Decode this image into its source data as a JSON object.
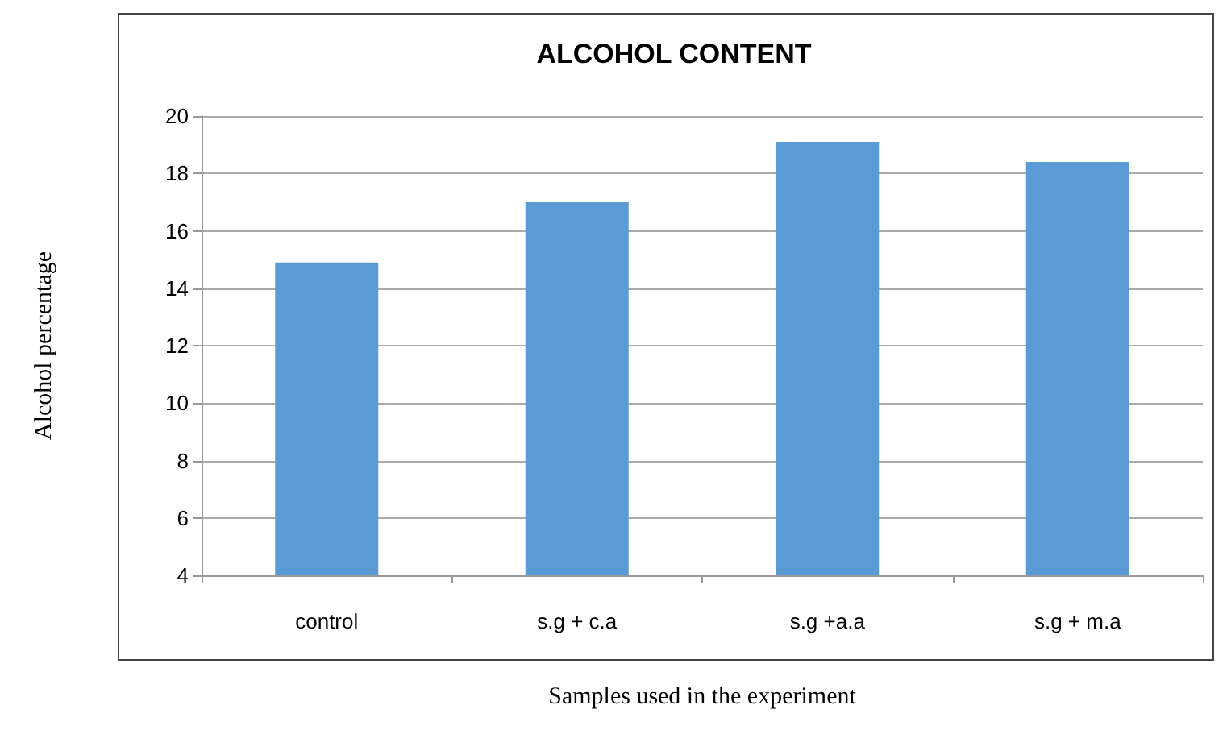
{
  "chart_data": {
    "type": "bar",
    "title": "ALCOHOL CONTENT",
    "xlabel": "Samples used in the experiment",
    "ylabel": "Alcohol percentage",
    "categories": [
      "control",
      "s.g + c.a",
      "s.g +a.a",
      "s.g + m.a"
    ],
    "values": [
      14.9,
      17.0,
      19.1,
      18.4
    ],
    "color": "#5b9bd5",
    "ylim": [
      4,
      20
    ],
    "yticks": [
      4,
      6,
      8,
      10,
      12,
      14,
      16,
      18,
      20
    ],
    "grid": "y"
  }
}
